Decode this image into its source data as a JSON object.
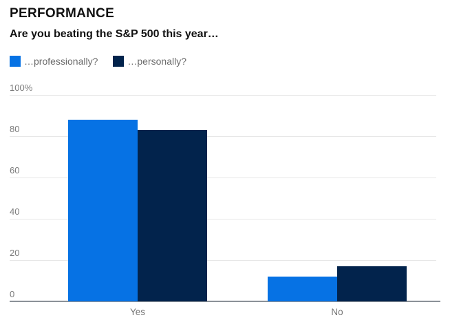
{
  "header": {
    "title": "PERFORMANCE",
    "subtitle": "Are you beating the S&P 500 this year…"
  },
  "chart_data": {
    "type": "bar",
    "title": "PERFORMANCE",
    "subtitle": "Are you beating the S&P 500 this year…",
    "categories": [
      "Yes",
      "No"
    ],
    "series": [
      {
        "name": "…professionally?",
        "color": "#0672e4",
        "values": [
          88,
          12
        ]
      },
      {
        "name": "…personally?",
        "color": "#02234c",
        "values": [
          83,
          17
        ]
      }
    ],
    "xlabel": "",
    "ylabel": "",
    "ylim": [
      0,
      100
    ],
    "yticks": [
      0,
      20,
      40,
      60,
      80,
      100
    ],
    "ytick_labels": [
      "0",
      "20",
      "40",
      "60",
      "80",
      "100%"
    ],
    "grid": true,
    "legend_position": "top-left",
    "colors": {
      "background": "#ffffff",
      "title_text": "#111111",
      "legend_text": "#6b6b6b",
      "axis_text": "#7b7b7b",
      "gridline": "#e6e6e6",
      "baseline": "#8b9198"
    }
  }
}
